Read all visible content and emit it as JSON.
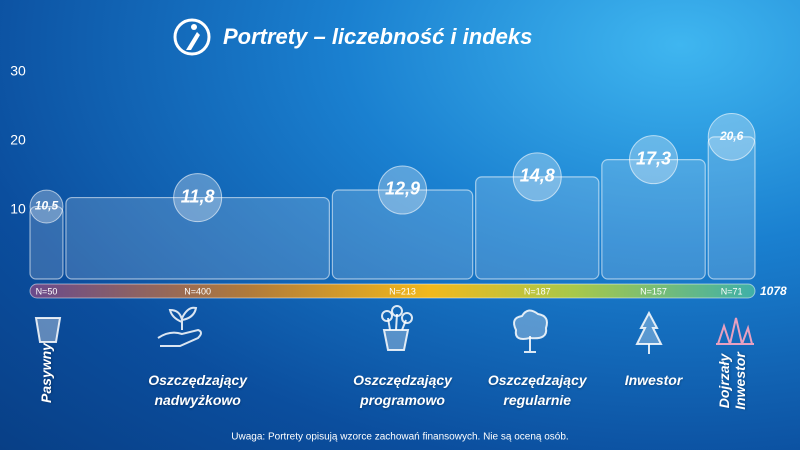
{
  "chart_data": {
    "type": "variable-width-bar",
    "title": "Portrety – liczebność i indeks",
    "categories": [
      "Pasywny",
      "Oszczędzający nadwyżkowo",
      "Oszczędzający programowo",
      "Oszczędzający regularnie",
      "Inwestor",
      "Dojrzały Inwestor"
    ],
    "values": [
      10.5,
      11.8,
      12.9,
      14.8,
      17.3,
      20.6
    ],
    "value_labels": [
      "10,5",
      "11,8",
      "12,9",
      "14,8",
      "17,3",
      "20,6"
    ],
    "n": [
      50,
      400,
      213,
      187,
      157,
      71
    ],
    "n_labels": [
      "N=50",
      "N=400",
      "N=213",
      "N=187",
      "N=157",
      "N=71"
    ],
    "total": 1078,
    "ylim": [
      0,
      30
    ],
    "yticks": [
      10,
      20,
      30
    ],
    "grid": false,
    "note": "Uwaga: Portrety opisują wzorce zachowań finansowych. Nie są oceną osób."
  }
}
